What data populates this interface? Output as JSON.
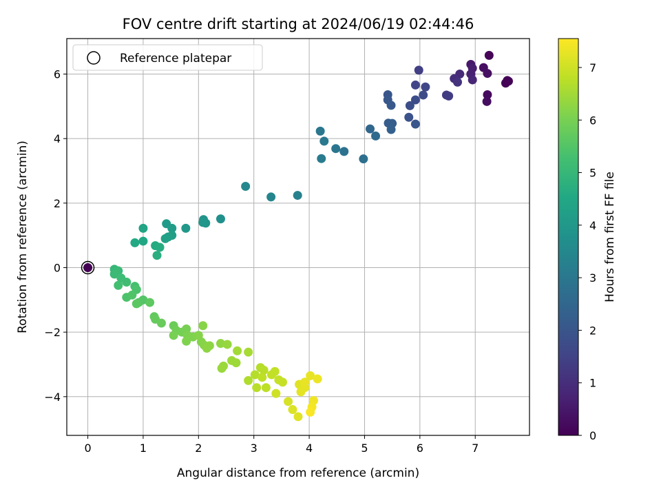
{
  "chart_data": {
    "type": "scatter",
    "title": "FOV centre drift starting at 2024/06/19 02:44:46",
    "xlabel": "Angular distance from reference (arcmin)",
    "ylabel": "Rotation from reference (arcmin)",
    "xlim": [
      -0.38,
      7.98
    ],
    "ylim": [
      -5.2,
      7.1
    ],
    "xticks": [
      0,
      1,
      2,
      3,
      4,
      5,
      6,
      7
    ],
    "yticks": [
      -4,
      -2,
      0,
      2,
      4,
      6
    ],
    "grid": true,
    "legend": {
      "placement": "top-left",
      "entries": [
        "Reference platepar"
      ]
    },
    "colorbar": {
      "label": "Hours from first FF file",
      "range": [
        0,
        7.55
      ],
      "ticks": [
        0,
        1,
        2,
        3,
        4,
        5,
        6,
        7
      ],
      "colormap": "viridis"
    },
    "reference_point": {
      "x": 0,
      "y": 0
    },
    "points": [
      {
        "x": 0.0,
        "y": 0.0,
        "t": 0.0
      },
      {
        "x": 7.25,
        "y": 6.58,
        "t": 0.1
      },
      {
        "x": 7.58,
        "y": 5.8,
        "t": 0.05
      },
      {
        "x": 7.55,
        "y": 5.72,
        "t": 0.05
      },
      {
        "x": 7.6,
        "y": 5.78,
        "t": 0.05
      },
      {
        "x": 7.22,
        "y": 5.36,
        "t": 0.2
      },
      {
        "x": 7.21,
        "y": 5.15,
        "t": 0.25
      },
      {
        "x": 7.15,
        "y": 6.2,
        "t": 0.3
      },
      {
        "x": 7.22,
        "y": 6.02,
        "t": 0.35
      },
      {
        "x": 6.92,
        "y": 6.3,
        "t": 0.5
      },
      {
        "x": 6.95,
        "y": 6.18,
        "t": 0.6
      },
      {
        "x": 6.92,
        "y": 6.0,
        "t": 0.7
      },
      {
        "x": 6.95,
        "y": 5.82,
        "t": 0.8
      },
      {
        "x": 6.72,
        "y": 6.0,
        "t": 0.9
      },
      {
        "x": 6.62,
        "y": 5.86,
        "t": 1.0
      },
      {
        "x": 6.68,
        "y": 5.75,
        "t": 1.1
      },
      {
        "x": 6.48,
        "y": 5.35,
        "t": 1.3
      },
      {
        "x": 6.52,
        "y": 5.32,
        "t": 1.35
      },
      {
        "x": 5.98,
        "y": 6.12,
        "t": 1.4
      },
      {
        "x": 5.92,
        "y": 5.66,
        "t": 1.55
      },
      {
        "x": 6.1,
        "y": 5.6,
        "t": 1.6
      },
      {
        "x": 6.06,
        "y": 5.35,
        "t": 1.7
      },
      {
        "x": 5.92,
        "y": 5.2,
        "t": 1.75
      },
      {
        "x": 5.82,
        "y": 5.02,
        "t": 1.8
      },
      {
        "x": 5.8,
        "y": 4.66,
        "t": 1.9
      },
      {
        "x": 5.92,
        "y": 4.45,
        "t": 2.0
      },
      {
        "x": 5.42,
        "y": 5.36,
        "t": 2.0
      },
      {
        "x": 5.42,
        "y": 5.2,
        "t": 2.05
      },
      {
        "x": 5.48,
        "y": 5.03,
        "t": 2.1
      },
      {
        "x": 5.43,
        "y": 4.48,
        "t": 2.2
      },
      {
        "x": 5.5,
        "y": 4.47,
        "t": 2.25
      },
      {
        "x": 5.48,
        "y": 4.28,
        "t": 2.3
      },
      {
        "x": 5.1,
        "y": 4.3,
        "t": 2.5
      },
      {
        "x": 5.2,
        "y": 4.08,
        "t": 2.6
      },
      {
        "x": 4.98,
        "y": 3.37,
        "t": 2.75
      },
      {
        "x": 4.63,
        "y": 3.6,
        "t": 2.85
      },
      {
        "x": 4.48,
        "y": 3.69,
        "t": 2.95
      },
      {
        "x": 4.2,
        "y": 4.23,
        "t": 3.0
      },
      {
        "x": 4.27,
        "y": 3.92,
        "t": 3.05
      },
      {
        "x": 4.22,
        "y": 3.38,
        "t": 3.1
      },
      {
        "x": 3.79,
        "y": 2.24,
        "t": 3.3
      },
      {
        "x": 3.31,
        "y": 2.19,
        "t": 3.4
      },
      {
        "x": 2.85,
        "y": 2.52,
        "t": 3.5
      },
      {
        "x": 2.4,
        "y": 1.51,
        "t": 3.75
      },
      {
        "x": 2.09,
        "y": 1.49,
        "t": 3.85
      },
      {
        "x": 2.13,
        "y": 1.38,
        "t": 3.9
      },
      {
        "x": 2.08,
        "y": 1.4,
        "t": 3.95
      },
      {
        "x": 1.77,
        "y": 1.22,
        "t": 4.0
      },
      {
        "x": 1.42,
        "y": 1.36,
        "t": 4.1
      },
      {
        "x": 1.52,
        "y": 1.22,
        "t": 4.15
      },
      {
        "x": 1.52,
        "y": 1.0,
        "t": 4.2
      },
      {
        "x": 1.45,
        "y": 0.95,
        "t": 4.25
      },
      {
        "x": 1.4,
        "y": 0.9,
        "t": 4.3
      },
      {
        "x": 1.0,
        "y": 1.22,
        "t": 4.4
      },
      {
        "x": 1.0,
        "y": 0.82,
        "t": 4.5
      },
      {
        "x": 0.85,
        "y": 0.77,
        "t": 4.55
      },
      {
        "x": 1.22,
        "y": 0.68,
        "t": 4.6
      },
      {
        "x": 1.3,
        "y": 0.63,
        "t": 4.65
      },
      {
        "x": 1.25,
        "y": 0.38,
        "t": 4.7
      },
      {
        "x": 0.48,
        "y": -0.05,
        "t": 5.0
      },
      {
        "x": 0.55,
        "y": -0.1,
        "t": 5.05
      },
      {
        "x": 0.48,
        "y": -0.2,
        "t": 5.1
      },
      {
        "x": 0.6,
        "y": -0.32,
        "t": 5.15
      },
      {
        "x": 0.7,
        "y": -0.45,
        "t": 5.2
      },
      {
        "x": 0.55,
        "y": -0.55,
        "t": 5.25
      },
      {
        "x": 0.85,
        "y": -0.58,
        "t": 5.3
      },
      {
        "x": 0.88,
        "y": -0.68,
        "t": 5.35
      },
      {
        "x": 0.7,
        "y": -0.92,
        "t": 5.4
      },
      {
        "x": 0.8,
        "y": -0.85,
        "t": 5.45
      },
      {
        "x": 1.0,
        "y": -1.0,
        "t": 5.5
      },
      {
        "x": 0.92,
        "y": -1.08,
        "t": 5.55
      },
      {
        "x": 0.88,
        "y": -1.12,
        "t": 5.6
      },
      {
        "x": 1.12,
        "y": -1.08,
        "t": 5.65
      },
      {
        "x": 1.2,
        "y": -1.52,
        "t": 5.7
      },
      {
        "x": 1.22,
        "y": -1.6,
        "t": 5.75
      },
      {
        "x": 1.33,
        "y": -1.72,
        "t": 5.8
      },
      {
        "x": 1.55,
        "y": -1.8,
        "t": 5.85
      },
      {
        "x": 1.6,
        "y": -1.95,
        "t": 5.9
      },
      {
        "x": 1.7,
        "y": -2.0,
        "t": 5.95
      },
      {
        "x": 1.55,
        "y": -2.1,
        "t": 6.0
      },
      {
        "x": 1.78,
        "y": -1.9,
        "t": 6.0
      },
      {
        "x": 1.8,
        "y": -2.1,
        "t": 6.05
      },
      {
        "x": 1.78,
        "y": -2.28,
        "t": 6.1
      },
      {
        "x": 1.9,
        "y": -2.15,
        "t": 6.1
      },
      {
        "x": 2.0,
        "y": -2.1,
        "t": 6.15
      },
      {
        "x": 2.05,
        "y": -2.3,
        "t": 6.15
      },
      {
        "x": 2.1,
        "y": -2.4,
        "t": 6.2
      },
      {
        "x": 2.08,
        "y": -1.8,
        "t": 6.2
      },
      {
        "x": 2.2,
        "y": -2.42,
        "t": 6.25
      },
      {
        "x": 2.15,
        "y": -2.5,
        "t": 6.25
      },
      {
        "x": 2.4,
        "y": -2.35,
        "t": 6.3
      },
      {
        "x": 2.52,
        "y": -2.38,
        "t": 6.35
      },
      {
        "x": 2.45,
        "y": -3.05,
        "t": 6.4
      },
      {
        "x": 2.42,
        "y": -3.12,
        "t": 6.4
      },
      {
        "x": 2.6,
        "y": -2.88,
        "t": 6.45
      },
      {
        "x": 2.68,
        "y": -2.95,
        "t": 6.45
      },
      {
        "x": 2.7,
        "y": -2.58,
        "t": 6.5
      },
      {
        "x": 2.9,
        "y": -2.62,
        "t": 6.55
      },
      {
        "x": 2.9,
        "y": -3.5,
        "t": 6.65
      },
      {
        "x": 3.02,
        "y": -3.32,
        "t": 6.7
      },
      {
        "x": 3.12,
        "y": -3.1,
        "t": 6.7
      },
      {
        "x": 3.18,
        "y": -3.18,
        "t": 6.75
      },
      {
        "x": 3.05,
        "y": -3.72,
        "t": 6.75
      },
      {
        "x": 3.15,
        "y": -3.4,
        "t": 6.8
      },
      {
        "x": 3.22,
        "y": -3.72,
        "t": 6.8
      },
      {
        "x": 3.32,
        "y": -3.32,
        "t": 6.85
      },
      {
        "x": 3.38,
        "y": -3.22,
        "t": 6.85
      },
      {
        "x": 3.45,
        "y": -3.48,
        "t": 6.9
      },
      {
        "x": 3.52,
        "y": -3.55,
        "t": 6.9
      },
      {
        "x": 3.4,
        "y": -3.9,
        "t": 7.0
      },
      {
        "x": 3.62,
        "y": -4.15,
        "t": 7.1
      },
      {
        "x": 3.7,
        "y": -4.4,
        "t": 7.15
      },
      {
        "x": 3.8,
        "y": -4.62,
        "t": 7.2
      },
      {
        "x": 3.82,
        "y": -3.62,
        "t": 7.2
      },
      {
        "x": 3.85,
        "y": -3.85,
        "t": 7.25
      },
      {
        "x": 3.92,
        "y": -3.72,
        "t": 7.25
      },
      {
        "x": 3.92,
        "y": -3.55,
        "t": 7.3
      },
      {
        "x": 4.02,
        "y": -3.35,
        "t": 7.3
      },
      {
        "x": 4.15,
        "y": -3.45,
        "t": 7.35
      },
      {
        "x": 4.08,
        "y": -4.12,
        "t": 7.4
      },
      {
        "x": 4.05,
        "y": -4.32,
        "t": 7.45
      },
      {
        "x": 4.02,
        "y": -4.48,
        "t": 7.5
      }
    ]
  }
}
